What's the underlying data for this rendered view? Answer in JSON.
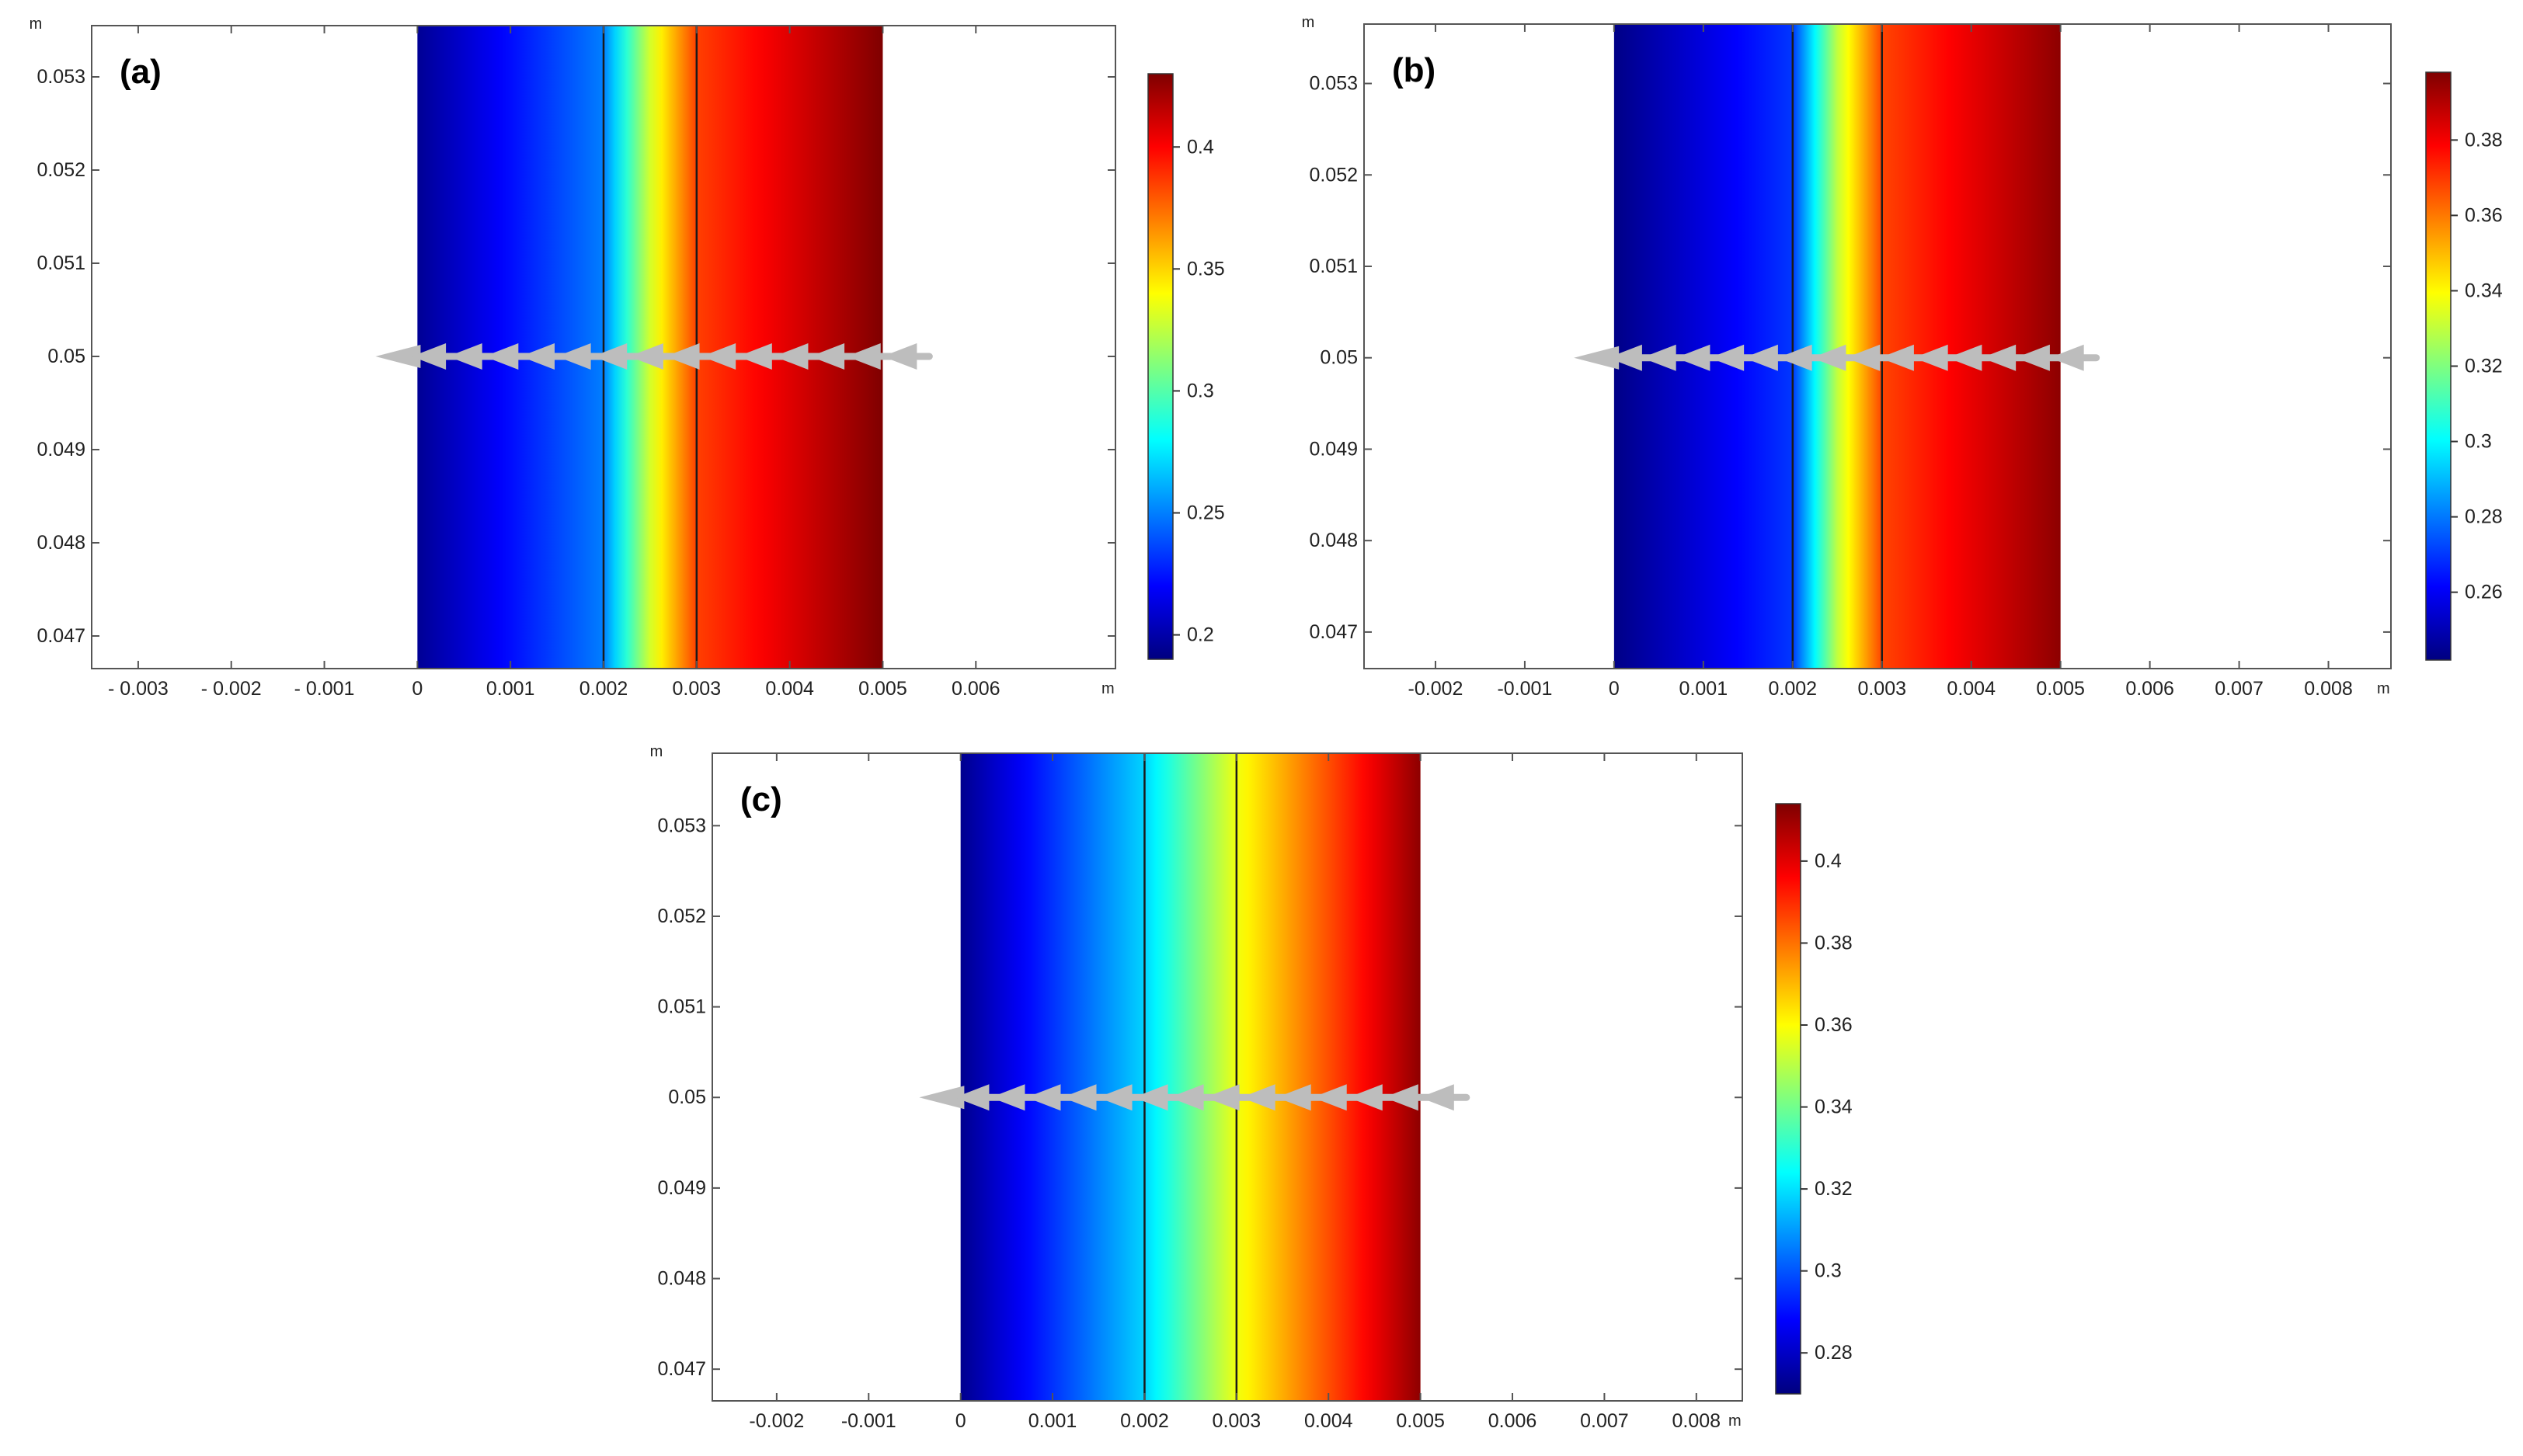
{
  "colors": {
    "arrow": "#bdbdbd",
    "boundary": "#1a1a1a",
    "axis": "#555555",
    "jet": [
      "#00007f",
      "#0000ff",
      "#007fff",
      "#00ffff",
      "#7fff7f",
      "#ffff00",
      "#ff7f00",
      "#ff0000",
      "#7f0000"
    ]
  },
  "chart_data": [
    {
      "type": "heatmap",
      "panel_label": "(a)",
      "x_unit": "m",
      "y_unit": "m",
      "xlim": [
        -0.0035,
        0.0075
      ],
      "ylim": [
        0.04665,
        0.05355
      ],
      "x_ticks": [
        -0.003,
        -0.002,
        -0.001,
        0,
        0.001,
        0.002,
        0.003,
        0.004,
        0.005,
        0.006
      ],
      "x_tick_labels": [
        "- 0.003",
        "- 0.002",
        "- 0.001",
        "0",
        "0.001",
        "0.002",
        "0.003",
        "0.004",
        "0.005",
        "0.006"
      ],
      "y_ticks": [
        0.047,
        0.048,
        0.049,
        0.05,
        0.051,
        0.052,
        0.053
      ],
      "y_tick_labels": [
        "0.047",
        "0.048",
        "0.049",
        "0.05",
        "0.051",
        "0.052",
        "0.053"
      ],
      "domain_x": [
        0,
        0.005
      ],
      "interfaces": [
        0.002,
        0.003
      ],
      "value_profile": [
        {
          "x": 0,
          "v": 0.195
        },
        {
          "x": 0.002,
          "v": 0.25
        },
        {
          "x": 0.0025,
          "v": 0.33
        },
        {
          "x": 0.003,
          "v": 0.385
        },
        {
          "x": 0.005,
          "v": 0.43
        }
      ],
      "colorbar": {
        "min": 0.19,
        "max": 0.43,
        "ticks": [
          0.2,
          0.25,
          0.3,
          0.35,
          0.4
        ],
        "tick_labels": [
          "0.2",
          "0.25",
          "0.3",
          "0.35",
          "0.4"
        ]
      },
      "arrow": {
        "x_start": 0.0055,
        "x_end": -0.00045,
        "y": 0.05,
        "n_heads": 15
      }
    },
    {
      "type": "heatmap",
      "panel_label": "(b)",
      "x_unit": "m",
      "y_unit": "m",
      "xlim": [
        -0.0028,
        0.0087
      ],
      "ylim": [
        0.0466,
        0.05365
      ],
      "x_ticks": [
        -0.002,
        -0.001,
        0,
        0.001,
        0.002,
        0.003,
        0.004,
        0.005,
        0.006,
        0.007,
        0.008
      ],
      "x_tick_labels": [
        "-0.002",
        "-0.001",
        "0",
        "0.001",
        "0.002",
        "0.003",
        "0.004",
        "0.005",
        "0.006",
        "0.007",
        "0.008"
      ],
      "y_ticks": [
        0.047,
        0.048,
        0.049,
        0.05,
        0.051,
        0.052,
        0.053
      ],
      "y_tick_labels": [
        "0.047",
        "0.048",
        "0.049",
        "0.05",
        "0.051",
        "0.052",
        "0.053"
      ],
      "domain_x": [
        0,
        0.005
      ],
      "interfaces": [
        0.002,
        0.003
      ],
      "value_profile": [
        {
          "x": 0,
          "v": 0.243
        },
        {
          "x": 0.002,
          "v": 0.27
        },
        {
          "x": 0.0025,
          "v": 0.33
        },
        {
          "x": 0.003,
          "v": 0.368
        },
        {
          "x": 0.005,
          "v": 0.396
        }
      ],
      "colorbar": {
        "min": 0.242,
        "max": 0.398,
        "ticks": [
          0.26,
          0.28,
          0.3,
          0.32,
          0.34,
          0.36,
          0.38
        ],
        "tick_labels": [
          "0.26",
          "0.28",
          "0.3",
          "0.32",
          "0.34",
          "0.36",
          "0.38"
        ]
      },
      "arrow": {
        "x_start": 0.0054,
        "x_end": -0.00045,
        "y": 0.05,
        "n_heads": 15
      }
    },
    {
      "type": "heatmap",
      "panel_label": "(c)",
      "x_unit": "m",
      "y_unit": "m",
      "xlim": [
        -0.0027,
        0.0085
      ],
      "ylim": [
        0.04665,
        0.0538
      ],
      "x_ticks": [
        -0.002,
        -0.001,
        0,
        0.001,
        0.002,
        0.003,
        0.004,
        0.005,
        0.006,
        0.007,
        0.008
      ],
      "x_tick_labels": [
        "-0.002",
        "-0.001",
        "0",
        "0.001",
        "0.002",
        "0.003",
        "0.004",
        "0.005",
        "0.006",
        "0.007",
        "0.008"
      ],
      "y_ticks": [
        0.047,
        0.048,
        0.049,
        0.05,
        0.051,
        0.052,
        0.053
      ],
      "y_tick_labels": [
        "0.047",
        "0.048",
        "0.049",
        "0.05",
        "0.051",
        "0.052",
        "0.053"
      ],
      "domain_x": [
        0,
        0.005
      ],
      "interfaces": [
        0.002,
        0.003
      ],
      "value_profile": [
        {
          "x": 0,
          "v": 0.272
        },
        {
          "x": 0.002,
          "v": 0.318
        },
        {
          "x": 0.003,
          "v": 0.358
        },
        {
          "x": 0.005,
          "v": 0.412
        }
      ],
      "colorbar": {
        "min": 0.27,
        "max": 0.414,
        "ticks": [
          0.28,
          0.3,
          0.32,
          0.34,
          0.36,
          0.38,
          0.4
        ],
        "tick_labels": [
          "0.28",
          "0.3",
          "0.32",
          "0.34",
          "0.36",
          "0.38",
          "0.4"
        ]
      },
      "arrow": {
        "x_start": 0.0055,
        "x_end": -0.00045,
        "y": 0.05,
        "n_heads": 15
      }
    }
  ]
}
